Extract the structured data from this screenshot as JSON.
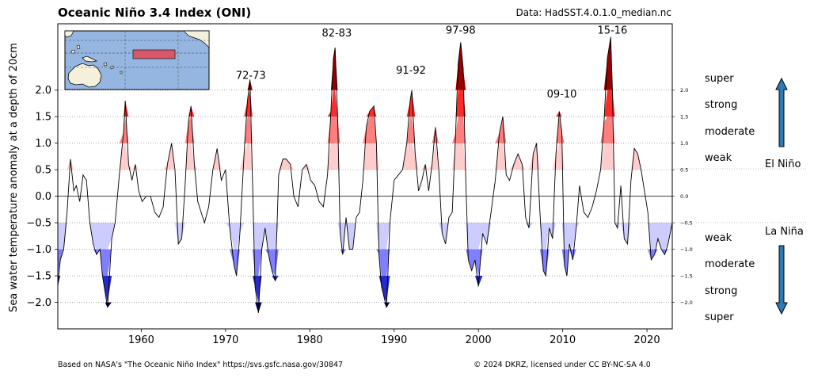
{
  "title": "Oceanic Niño 3.4 Index (ONI)",
  "source": "Data: HadSST.4.0.1.0_median.nc",
  "footer_left": "Based on NASA's \"The Oceanic Niño Index\" https://svs.gsfc.nasa.gov/30847",
  "footer_right": "© 2024 DKRZ, licensed under CC BY-NC-SA 4.0",
  "colors": {
    "el_nino_weak": "#ffcccc",
    "el_nino_moderate": "#ff7f7f",
    "el_nino_strong": "#ff2a2a",
    "el_nino_super": "#990000",
    "la_nina_weak": "#ccccff",
    "la_nina_moderate": "#7f7fff",
    "la_nina_strong": "#2a2acc",
    "la_nina_super": "#000066",
    "arrow": "#2b7bba",
    "map_ocean": "#95b6e1",
    "map_land": "#f5f0dc",
    "map_region": "#d9576a"
  },
  "side_labels": {
    "el_nino": {
      "heading": "El Niño",
      "levels": [
        "super",
        "strong",
        "moderate",
        "weak"
      ]
    },
    "la_nina": {
      "heading": "La Niña",
      "levels": [
        "weak",
        "moderate",
        "strong",
        "super"
      ]
    }
  },
  "chart_data": {
    "type": "area",
    "title": "Oceanic Niño 3.4 Index (ONI)",
    "xlabel": "",
    "ylabel": "Sea water temperature anomaly at a depth of 20cm",
    "xlim": [
      1950.1,
      2023.0
    ],
    "ylim": [
      -2.5,
      3.25
    ],
    "xticks": [
      1960,
      1970,
      1980,
      1990,
      2000,
      2010,
      2020
    ],
    "yticks": [
      2.0,
      1.5,
      1.0,
      0.5,
      0.0,
      -0.5,
      -1.0,
      -1.5,
      -2.0
    ],
    "ytick_labels": [
      "2.0",
      "1.5",
      "1.0",
      "0.5",
      "0.0",
      "−0.5",
      "−1.0",
      "−1.5",
      "−2.0"
    ],
    "thresholds": [
      2.0,
      1.5,
      1.0,
      0.5,
      -0.5,
      -1.0,
      -1.5,
      -2.0
    ],
    "grid": "dotted horizontal at thresholds",
    "annotations": [
      {
        "x": 1973.0,
        "y": 2.15,
        "text": "72-73"
      },
      {
        "x": 1983.2,
        "y": 2.95,
        "text": "82-83"
      },
      {
        "x": 1992.0,
        "y": 2.25,
        "text": "91-92"
      },
      {
        "x": 1997.9,
        "y": 3.0,
        "text": "97-98"
      },
      {
        "x": 2009.9,
        "y": 1.8,
        "text": "09-10"
      },
      {
        "x": 2015.9,
        "y": 3.0,
        "text": "15-16"
      }
    ],
    "series": [
      {
        "x": [
          1950.1,
          1950.4,
          1950.8,
          1951.2,
          1951.6,
          1952.0,
          1952.3,
          1952.7,
          1953.1,
          1953.5,
          1953.9,
          1954.3,
          1954.7,
          1955.1,
          1955.4,
          1955.7,
          1956.0,
          1956.5,
          1956.9,
          1957.4,
          1957.9,
          1958.1,
          1958.5,
          1958.9,
          1959.3,
          1959.7,
          1960.1,
          1960.6,
          1961.1,
          1961.6,
          1962.1,
          1962.6,
          1963.1,
          1963.6,
          1964.0,
          1964.4,
          1964.8,
          1965.2,
          1965.6,
          1965.9,
          1966.3,
          1966.7,
          1967.1,
          1967.5,
          1968.0,
          1968.5,
          1969.0,
          1969.5,
          1970.0,
          1970.5,
          1971.0,
          1971.3,
          1971.7,
          1972.2,
          1972.6,
          1972.9,
          1973.2,
          1973.5,
          1973.9,
          1974.3,
          1974.7,
          1975.1,
          1975.5,
          1975.9,
          1976.3,
          1976.8,
          1977.2,
          1977.7,
          1978.1,
          1978.6,
          1979.1,
          1979.6,
          1980.1,
          1980.6,
          1981.1,
          1981.6,
          1982.1,
          1982.5,
          1982.8,
          1983.0,
          1983.3,
          1983.6,
          1983.9,
          1984.3,
          1984.7,
          1985.1,
          1985.5,
          1985.9,
          1986.3,
          1986.7,
          1987.1,
          1987.6,
          1987.9,
          1988.2,
          1988.5,
          1988.8,
          1989.1,
          1989.5,
          1990.0,
          1990.5,
          1991.0,
          1991.5,
          1991.9,
          1992.1,
          1992.5,
          1992.9,
          1993.3,
          1993.7,
          1994.1,
          1994.5,
          1994.9,
          1995.3,
          1995.7,
          1996.1,
          1996.5,
          1996.9,
          1997.3,
          1997.6,
          1997.9,
          1998.2,
          1998.5,
          1998.8,
          1999.2,
          1999.6,
          2000.0,
          2000.5,
          2001.0,
          2001.5,
          2002.0,
          2002.5,
          2002.9,
          2003.3,
          2003.7,
          2004.2,
          2004.7,
          2005.2,
          2005.6,
          2006.0,
          2006.5,
          2006.9,
          2007.3,
          2007.7,
          2008.0,
          2008.4,
          2008.8,
          2009.2,
          2009.6,
          2009.9,
          2010.2,
          2010.5,
          2010.8,
          2011.2,
          2011.6,
          2012.0,
          2012.5,
          2013.0,
          2013.5,
          2014.0,
          2014.5,
          2014.9,
          2015.3,
          2015.7,
          2015.9,
          2016.2,
          2016.5,
          2016.9,
          2017.3,
          2017.7,
          2018.1,
          2018.5,
          2018.9,
          2019.3,
          2019.7,
          2020.1,
          2020.5,
          2020.9,
          2021.3,
          2021.7,
          2022.1,
          2022.5,
          2023.0
        ],
        "y": [
          -1.7,
          -1.2,
          -1.0,
          -0.3,
          0.7,
          0.1,
          0.2,
          -0.1,
          0.4,
          0.3,
          -0.5,
          -0.9,
          -1.1,
          -1.0,
          -1.5,
          -1.8,
          -2.1,
          -0.8,
          -0.5,
          0.4,
          1.2,
          1.8,
          0.6,
          0.3,
          0.6,
          0.1,
          -0.1,
          0.0,
          0.0,
          -0.3,
          -0.4,
          -0.2,
          0.6,
          1.0,
          0.5,
          -0.9,
          -0.8,
          0.2,
          1.4,
          1.7,
          0.6,
          -0.1,
          -0.3,
          -0.5,
          -0.2,
          0.5,
          0.9,
          0.3,
          0.5,
          -0.6,
          -1.3,
          -1.5,
          -0.7,
          0.8,
          1.8,
          2.2,
          0.3,
          -1.7,
          -2.2,
          -1.0,
          -0.6,
          -1.1,
          -1.4,
          -1.6,
          0.4,
          0.7,
          0.7,
          0.6,
          0.0,
          -0.2,
          0.5,
          0.6,
          0.3,
          0.2,
          -0.1,
          -0.2,
          0.4,
          1.6,
          2.6,
          2.8,
          1.5,
          -0.7,
          -1.1,
          -0.4,
          -1.0,
          -1.0,
          -0.4,
          -0.3,
          0.3,
          1.3,
          1.6,
          1.7,
          1.0,
          -1.1,
          -1.7,
          -1.9,
          -2.1,
          -0.5,
          0.3,
          0.4,
          0.5,
          1.0,
          1.8,
          2.0,
          0.8,
          0.1,
          0.3,
          0.6,
          0.1,
          0.6,
          1.3,
          0.5,
          -0.7,
          -0.9,
          -0.4,
          -0.3,
          1.2,
          2.5,
          2.9,
          2.4,
          0.3,
          -1.2,
          -1.4,
          -1.2,
          -1.7,
          -0.7,
          -0.9,
          -0.3,
          0.3,
          1.2,
          1.5,
          0.4,
          0.3,
          0.6,
          0.8,
          0.6,
          -0.4,
          -0.6,
          0.8,
          1.0,
          -0.3,
          -1.4,
          -1.5,
          -0.6,
          -0.8,
          0.8,
          1.6,
          1.2,
          -1.3,
          -1.5,
          -0.9,
          -1.2,
          -0.6,
          0.2,
          -0.3,
          -0.4,
          -0.2,
          0.1,
          0.5,
          1.4,
          2.6,
          3.0,
          2.0,
          -0.5,
          -0.6,
          0.2,
          -0.8,
          -0.9,
          0.3,
          0.9,
          0.8,
          0.5,
          0.1,
          -0.3,
          -1.2,
          -1.1,
          -0.8,
          -1.0,
          -1.1,
          -0.9,
          -0.5
        ]
      }
    ]
  }
}
